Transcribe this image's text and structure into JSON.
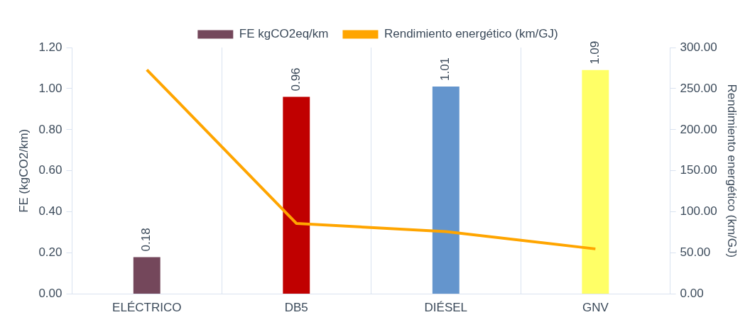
{
  "chart_data": {
    "type": "bar",
    "categories": [
      "ELÉCTRICO",
      "DB5",
      "DIÉSEL",
      "GNV"
    ],
    "ylabel": "FE (kgCO2/km)",
    "y2label": "Rendimiento energético (km/GJ)",
    "series": [
      {
        "name": "FE kgCO2eq/km",
        "colors": [
          "#74475b",
          "#c00000",
          "#6495cd",
          "#ffff66"
        ],
        "values": [
          0.18,
          0.96,
          1.01,
          1.09
        ],
        "data_labels": true
      },
      {
        "name": "Rendimiento energético (km/GJ)",
        "type": "line",
        "axis": "y2",
        "color": "#ffa500",
        "values": [
          273,
          86,
          76,
          55
        ]
      }
    ],
    "ylim": [
      0,
      1.2
    ],
    "yticks": [
      {
        "value": 0,
        "label": "0.00"
      },
      {
        "value": 0.2,
        "label": "0.20"
      },
      {
        "value": 0.4,
        "label": "0.40"
      },
      {
        "value": 0.6,
        "label": "0.60"
      },
      {
        "value": 0.8,
        "label": "0.80"
      },
      {
        "value": 1,
        "label": "1.00"
      },
      {
        "value": 1.2,
        "label": "1.20"
      }
    ],
    "y2lim": [
      0,
      300
    ],
    "y2ticks": [
      {
        "value": 0,
        "label": "0.00"
      },
      {
        "value": 50,
        "label": "50.00"
      },
      {
        "value": 100,
        "label": "100.00"
      },
      {
        "value": 150,
        "label": "150.00"
      },
      {
        "value": 200,
        "label": "200.00"
      },
      {
        "value": 250,
        "label": "250.00"
      },
      {
        "value": 300,
        "label": "300.00"
      }
    ],
    "grid": "x",
    "legend": "top",
    "marker": "none",
    "line_style": "solid"
  }
}
